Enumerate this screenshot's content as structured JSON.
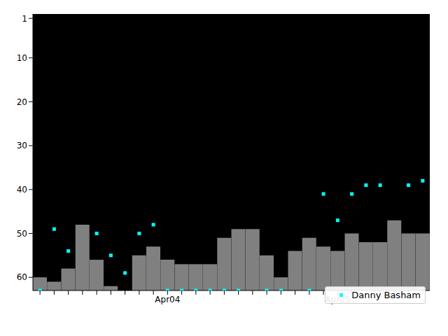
{
  "chart_data": {
    "type": "bar",
    "categories": [
      null,
      null,
      null,
      null,
      null,
      null,
      null,
      null,
      null,
      "Apr04",
      null,
      null,
      null,
      null,
      null,
      null,
      null,
      null,
      null,
      null,
      null,
      "Apr05",
      null,
      null,
      null,
      null,
      null,
      null
    ],
    "series": [
      {
        "type": "bar",
        "color": "#808080",
        "values": [
          60,
          61,
          58,
          48,
          56,
          62,
          null,
          55,
          53,
          56,
          57,
          57,
          57,
          51,
          49,
          49,
          55,
          60,
          54,
          51,
          53,
          54,
          50,
          52,
          52,
          47,
          50,
          50
        ]
      },
      {
        "name": "Danny Basham",
        "type": "scatter",
        "color": "#00ffff",
        "marker": "square",
        "values": [
          63,
          49,
          54,
          null,
          50,
          55,
          59,
          50,
          48,
          63,
          63,
          63,
          63,
          63,
          63,
          null,
          63,
          63,
          null,
          63,
          41,
          47,
          41,
          39,
          39,
          null,
          39,
          38
        ]
      }
    ],
    "ylim": [
      63,
      0
    ],
    "yticks": [
      1,
      10,
      20,
      30,
      40,
      50,
      60
    ],
    "grid": false,
    "legend": "lower right"
  }
}
